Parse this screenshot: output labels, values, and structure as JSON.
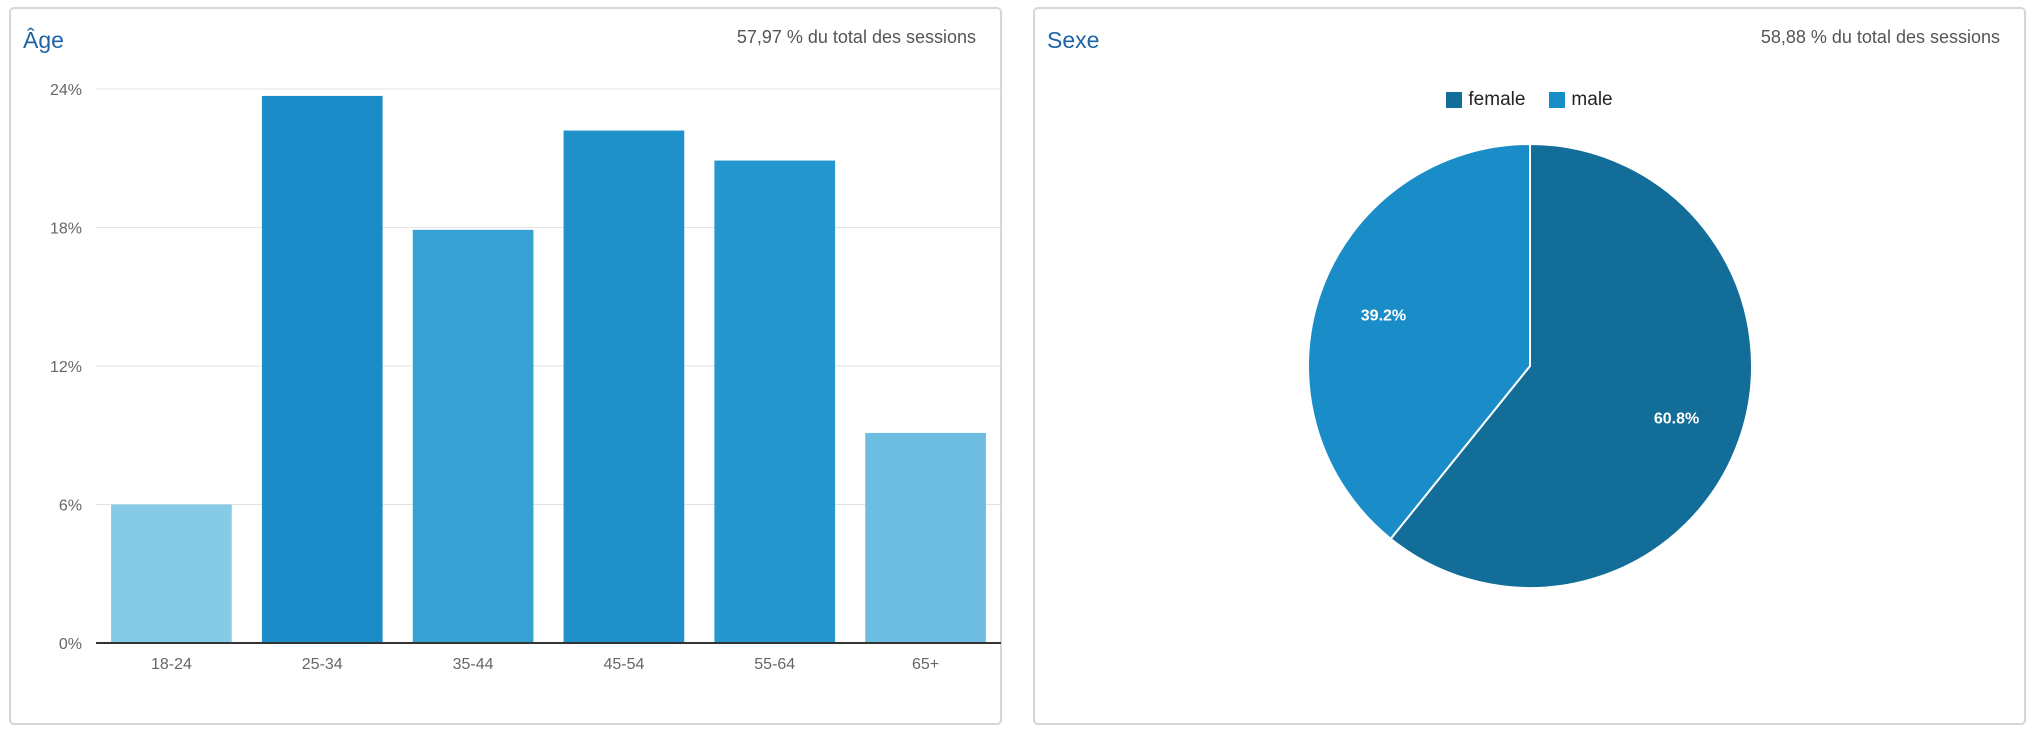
{
  "panels": {
    "age": {
      "title": "Âge",
      "subtitle": "57,97 % du total des sessions"
    },
    "sex": {
      "title": "Sexe",
      "subtitle": "58,88 % du total des sessions"
    }
  },
  "chart_data": [
    {
      "type": "bar",
      "title": "Âge",
      "categories": [
        "18-24",
        "25-34",
        "35-44",
        "45-54",
        "55-64",
        "65+"
      ],
      "values": [
        6.0,
        23.7,
        17.9,
        22.2,
        20.9,
        9.1
      ],
      "colors": [
        "#86cbe6",
        "#1a8dc8",
        "#35a2d3",
        "#1e91cb",
        "#2597cf",
        "#6cbde0"
      ],
      "ylim": [
        0,
        24
      ],
      "yticks": [
        0,
        6,
        12,
        18,
        24
      ],
      "ytick_labels": [
        "0%",
        "6%",
        "12%",
        "18%",
        "24%"
      ],
      "grid": true
    },
    {
      "type": "pie",
      "title": "Sexe",
      "labels": [
        "female",
        "male"
      ],
      "values": [
        60.8,
        39.2
      ],
      "value_labels": [
        "60.8%",
        "39.2%"
      ],
      "colors": [
        "#126d98",
        "#1a8dc8"
      ],
      "legend_position": "top-center"
    }
  ]
}
